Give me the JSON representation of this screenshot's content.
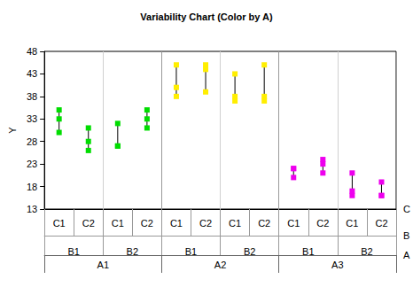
{
  "chart_data": {
    "type": "variability",
    "title": "Variability Chart (Color by A)",
    "y_label": "Y",
    "factors": [
      "A",
      "B",
      "C"
    ],
    "ylim": [
      13,
      48
    ],
    "yticks": [
      13,
      18,
      23,
      28,
      33,
      38,
      43,
      48
    ],
    "grid": false,
    "marker": "square",
    "series": [
      {
        "name": "A1",
        "color": "#00dd00",
        "cells": [
          {
            "B": "B1",
            "C": "C1",
            "values": [
              35,
              33,
              30
            ]
          },
          {
            "B": "B1",
            "C": "C2",
            "values": [
              31,
              28,
              26
            ]
          },
          {
            "B": "B2",
            "C": "C1",
            "values": [
              32,
              27,
              27
            ]
          },
          {
            "B": "B2",
            "C": "C2",
            "values": [
              35,
              33,
              31
            ]
          }
        ]
      },
      {
        "name": "A2",
        "color": "#ffee00",
        "cells": [
          {
            "B": "B1",
            "C": "C1",
            "values": [
              45,
              40,
              38
            ]
          },
          {
            "B": "B1",
            "C": "C2",
            "values": [
              45,
              44,
              39
            ]
          },
          {
            "B": "B2",
            "C": "C1",
            "values": [
              43,
              38,
              37
            ]
          },
          {
            "B": "B2",
            "C": "C2",
            "values": [
              45,
              38,
              37
            ]
          }
        ]
      },
      {
        "name": "A3",
        "color": "#ee00ee",
        "cells": [
          {
            "B": "B1",
            "C": "C1",
            "values": [
              22,
              20,
              22
            ]
          },
          {
            "B": "B1",
            "C": "C2",
            "values": [
              24,
              23,
              21
            ]
          },
          {
            "B": "B2",
            "C": "C1",
            "values": [
              21,
              17,
              16
            ]
          },
          {
            "B": "B2",
            "C": "C2",
            "values": [
              19,
              16,
              16
            ]
          }
        ]
      }
    ]
  }
}
